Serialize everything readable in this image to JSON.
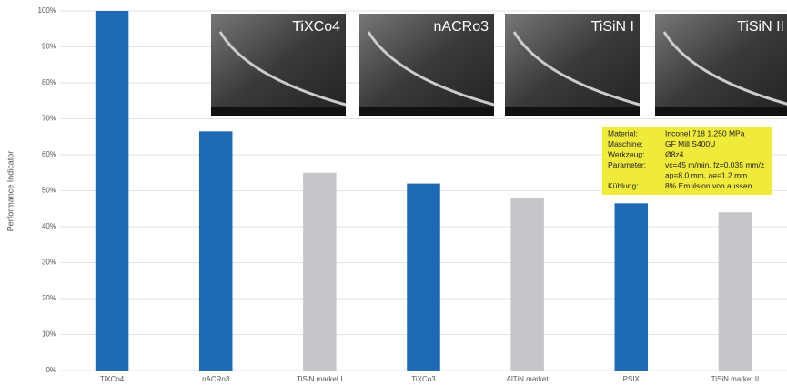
{
  "chart_data": {
    "type": "bar",
    "y_label": "Performance Indicator",
    "categories": [
      "TiXCo4",
      "nACRo3",
      "TiSiN market I",
      "TiXCo3",
      "AlTiN market",
      "PSIX",
      "TiSiN market II"
    ],
    "values": [
      100,
      66.5,
      55,
      52,
      48,
      46.5,
      44
    ],
    "colors": [
      "#1f6ab5",
      "#1f6ab5",
      "#c4c6c9",
      "#1f6ab5",
      "#c4c6c9",
      "#1f6ab5",
      "#c4c6c9"
    ],
    "ylim": [
      0,
      100
    ],
    "yticks": [
      {
        "value": 0,
        "label": "0%"
      },
      {
        "value": 10,
        "label": "10%"
      },
      {
        "value": 20,
        "label": "20%"
      },
      {
        "value": 30,
        "label": "30%"
      },
      {
        "value": 40,
        "label": "40%"
      },
      {
        "value": 50,
        "label": "50%"
      },
      {
        "value": 60,
        "label": "60%"
      },
      {
        "value": 70,
        "label": "70%"
      },
      {
        "value": 80,
        "label": "80%"
      },
      {
        "value": 90,
        "label": "90%"
      },
      {
        "value": 100,
        "label": "100%"
      }
    ],
    "grid": true,
    "image_labels": [
      "TiXCo4",
      "nACRo3",
      "TiSiN I",
      "TiSiN II"
    ],
    "info_box": [
      [
        "Material:",
        "Inconel 718 1.250 MPa"
      ],
      [
        "Maschine:",
        "GF Mill S400U"
      ],
      [
        "Werkzeug:",
        "Ø8z4"
      ],
      [
        "Parameter:",
        "vc=45 m/min, fz=0.035 mm/z"
      ],
      [
        "",
        "ap=8.0 mm, ae=1.2 mm"
      ],
      [
        "Kühlung:",
        "8% Emulsion von aussen"
      ]
    ]
  }
}
